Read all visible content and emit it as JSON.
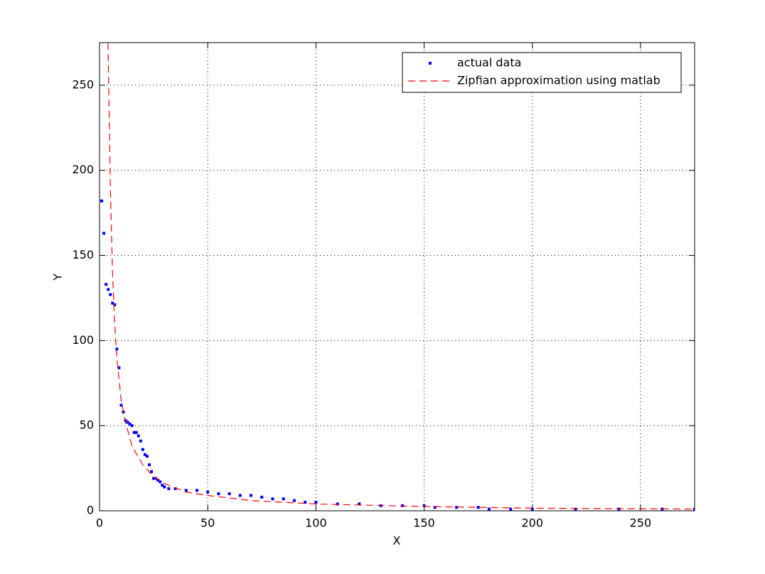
{
  "chart_data": {
    "type": "scatter",
    "xlabel": "X",
    "ylabel": "Y",
    "xlim": [
      0,
      275
    ],
    "ylim": [
      0,
      275
    ],
    "xticks": [
      0,
      50,
      100,
      150,
      200,
      250
    ],
    "yticks": [
      0,
      50,
      100,
      150,
      200,
      250
    ],
    "grid": true,
    "legend": "upper right",
    "series": [
      {
        "name": "actual data",
        "color": "#0000ff",
        "style": "markers",
        "x": [
          1,
          2,
          3,
          4,
          5,
          6,
          7,
          8,
          9,
          10,
          11,
          12,
          13,
          14,
          15,
          16,
          17,
          18,
          19,
          20,
          21,
          22,
          23,
          24,
          25,
          26,
          27,
          28,
          29,
          30,
          32,
          35,
          40,
          45,
          50,
          55,
          60,
          65,
          70,
          75,
          80,
          85,
          90,
          95,
          100,
          110,
          120,
          130,
          140,
          150,
          155,
          165,
          175,
          180,
          190,
          200,
          220,
          240,
          260,
          275
        ],
        "values": [
          182,
          163,
          133,
          130,
          127,
          122,
          121,
          95,
          84,
          62,
          58,
          53,
          52,
          51,
          50,
          46,
          46,
          44,
          41,
          36,
          33,
          32,
          27,
          23,
          19,
          19,
          18,
          17,
          15,
          14,
          13,
          13,
          12,
          12,
          11,
          10,
          10,
          9,
          9,
          8,
          7,
          7,
          6,
          5,
          5,
          4,
          4,
          3,
          3,
          3,
          2,
          2,
          2,
          1,
          1,
          1,
          1,
          1,
          1,
          1
        ]
      },
      {
        "name": "Zipfian approximation using matlab",
        "color": "#ff0000",
        "style": "dashed",
        "x": [
          3.9,
          4.5,
          5,
          6,
          7,
          8,
          10,
          12,
          15,
          20,
          25,
          30,
          40,
          50,
          70,
          100,
          150,
          200,
          275
        ],
        "values": [
          275,
          230,
          190,
          140,
          110,
          90,
          65,
          52,
          38,
          27,
          20,
          16,
          11,
          9,
          6,
          4,
          2.5,
          1.5,
          1
        ]
      }
    ]
  }
}
